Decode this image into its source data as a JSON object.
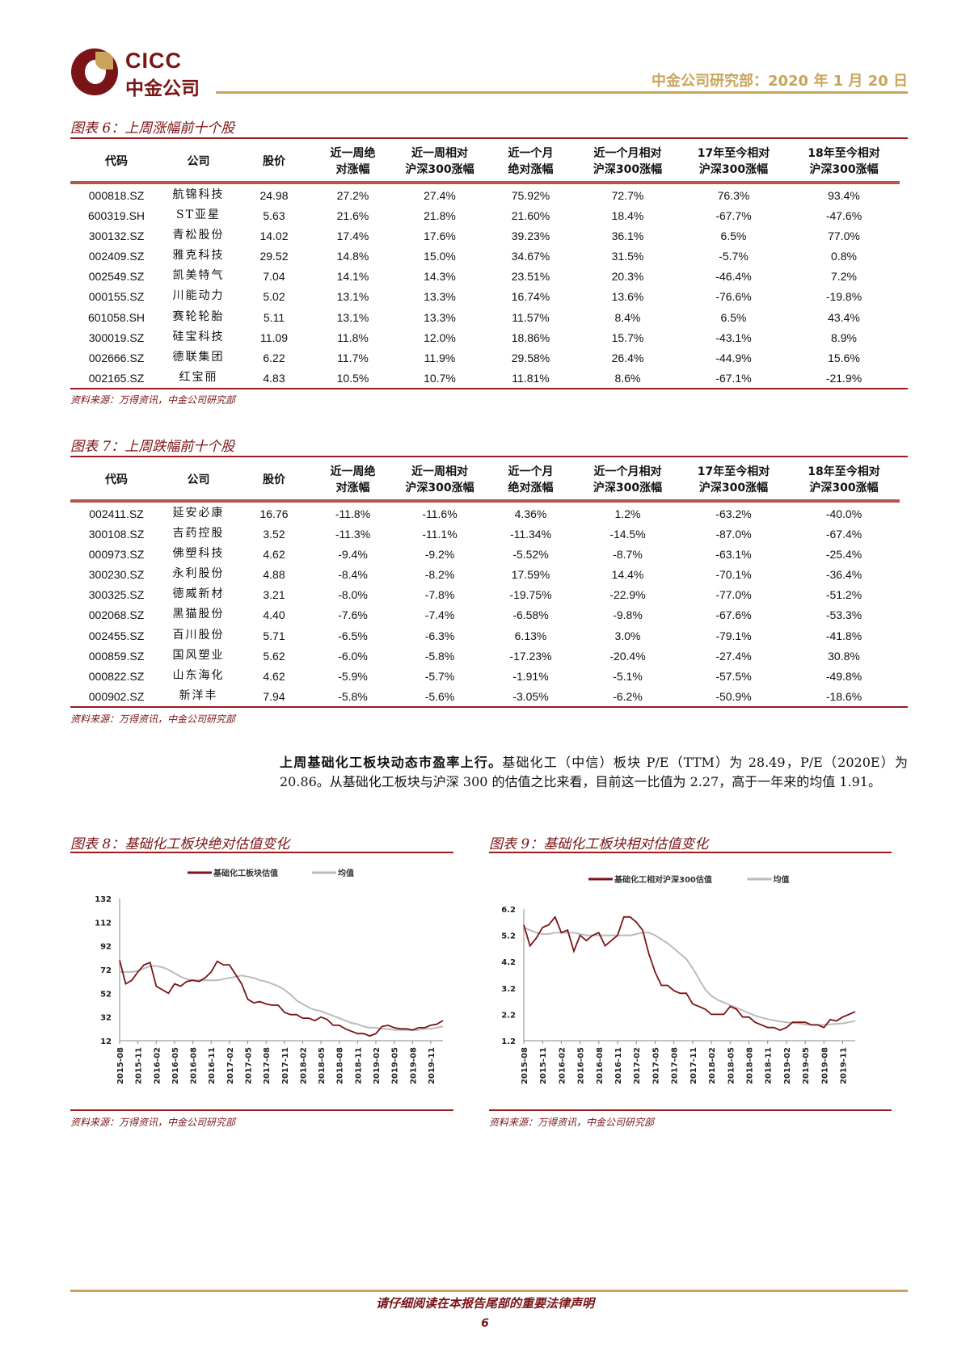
{
  "header": {
    "logo_en": "CICC",
    "logo_cn": "中金公司",
    "right_text": "中金公司研究部：2020 年 1 月 20 日"
  },
  "table1": {
    "title": "图表 6：上周涨幅前十个股",
    "headers": [
      "代码",
      "公司",
      "股价",
      "近一周绝\n对涨幅",
      "近一周相对\n沪深300涨幅",
      "近一个月\n绝对涨幅",
      "近一个月相对\n沪深300涨幅",
      "17年至今相对\n沪深300涨幅",
      "18年至今相对\n沪深300涨幅"
    ],
    "rows": [
      [
        "000818.SZ",
        "航锦科技",
        "24.98",
        "27.2%",
        "27.4%",
        "75.92%",
        "72.7%",
        "76.3%",
        "93.4%"
      ],
      [
        "600319.SH",
        "ST亚星",
        "5.63",
        "21.6%",
        "21.8%",
        "21.60%",
        "18.4%",
        "-67.7%",
        "-47.6%"
      ],
      [
        "300132.SZ",
        "青松股份",
        "14.02",
        "17.4%",
        "17.6%",
        "39.23%",
        "36.1%",
        "6.5%",
        "77.0%"
      ],
      [
        "002409.SZ",
        "雅克科技",
        "29.52",
        "14.8%",
        "15.0%",
        "34.67%",
        "31.5%",
        "-5.7%",
        "0.8%"
      ],
      [
        "002549.SZ",
        "凯美特气",
        "7.04",
        "14.1%",
        "14.3%",
        "23.51%",
        "20.3%",
        "-46.4%",
        "7.2%"
      ],
      [
        "000155.SZ",
        "川能动力",
        "5.02",
        "13.1%",
        "13.3%",
        "16.74%",
        "13.6%",
        "-76.6%",
        "-19.8%"
      ],
      [
        "601058.SH",
        "赛轮轮胎",
        "5.11",
        "13.1%",
        "13.3%",
        "11.57%",
        "8.4%",
        "6.5%",
        "43.4%"
      ],
      [
        "300019.SZ",
        "硅宝科技",
        "11.09",
        "11.8%",
        "12.0%",
        "18.86%",
        "15.7%",
        "-43.1%",
        "8.9%"
      ],
      [
        "002666.SZ",
        "德联集团",
        "6.22",
        "11.7%",
        "11.9%",
        "29.58%",
        "26.4%",
        "-44.9%",
        "15.6%"
      ],
      [
        "002165.SZ",
        "红宝丽",
        "4.83",
        "10.5%",
        "10.7%",
        "11.81%",
        "8.6%",
        "-67.1%",
        "-21.9%"
      ]
    ],
    "source": "资料来源：万得资讯，中金公司研究部"
  },
  "table2": {
    "title": "图表 7：上周跌幅前十个股",
    "headers": [
      "代码",
      "公司",
      "股价",
      "近一周绝\n对涨幅",
      "近一周相对\n沪深300涨幅",
      "近一个月\n绝对涨幅",
      "近一个月相对\n沪深300涨幅",
      "17年至今相对\n沪深300涨幅",
      "18年至今相对\n沪深300涨幅"
    ],
    "rows": [
      [
        "002411.SZ",
        "延安必康",
        "16.76",
        "-11.8%",
        "-11.6%",
        "4.36%",
        "1.2%",
        "-63.2%",
        "-40.0%"
      ],
      [
        "300108.SZ",
        "吉药控股",
        "3.52",
        "-11.3%",
        "-11.1%",
        "-11.34%",
        "-14.5%",
        "-87.0%",
        "-67.4%"
      ],
      [
        "000973.SZ",
        "佛塑科技",
        "4.62",
        "-9.4%",
        "-9.2%",
        "-5.52%",
        "-8.7%",
        "-63.1%",
        "-25.4%"
      ],
      [
        "300230.SZ",
        "永利股份",
        "4.88",
        "-8.4%",
        "-8.2%",
        "17.59%",
        "14.4%",
        "-70.1%",
        "-36.4%"
      ],
      [
        "300325.SZ",
        "德威新材",
        "3.21",
        "-8.0%",
        "-7.8%",
        "-19.75%",
        "-22.9%",
        "-77.0%",
        "-51.2%"
      ],
      [
        "002068.SZ",
        "黑猫股份",
        "4.40",
        "-7.6%",
        "-7.4%",
        "-6.58%",
        "-9.8%",
        "-67.6%",
        "-53.3%"
      ],
      [
        "002455.SZ",
        "百川股份",
        "5.71",
        "-6.5%",
        "-6.3%",
        "6.13%",
        "3.0%",
        "-79.1%",
        "-41.8%"
      ],
      [
        "000859.SZ",
        "国风塑业",
        "5.62",
        "-6.0%",
        "-5.8%",
        "-17.23%",
        "-20.4%",
        "-27.4%",
        "30.8%"
      ],
      [
        "000822.SZ",
        "山东海化",
        "4.62",
        "-5.9%",
        "-5.7%",
        "-1.91%",
        "-5.1%",
        "-57.5%",
        "-49.8%"
      ],
      [
        "000902.SZ",
        "新洋丰",
        "7.94",
        "-5.8%",
        "-5.6%",
        "-3.05%",
        "-6.2%",
        "-50.9%",
        "-18.6%"
      ]
    ],
    "source": "资料来源：万得资讯，中金公司研究部"
  },
  "paragraph": {
    "bold": "上周基础化工板块动态市盈率上行。",
    "text": "基础化工（中信）板块 P/E（TTM）为 28.49，P/E（2020E）为 20.86。从基础化工板块与沪深 300 的估值之比来看，目前这一比值为 2.27，高于一年来的均值 1.91。"
  },
  "chart_data": [
    {
      "type": "line",
      "title": "图表 8：基础化工板块绝对估值变化",
      "source": "资料来源：万得资讯，中金公司研究部",
      "ylim": [
        12,
        132
      ],
      "yticks": [
        "132",
        "112",
        "92",
        "72",
        "52",
        "32",
        "12"
      ],
      "xticks": [
        "2015-08",
        "2015-11",
        "2016-02",
        "2016-05",
        "2016-08",
        "2016-11",
        "2017-02",
        "2017-05",
        "2017-08",
        "2017-11",
        "2018-02",
        "2018-05",
        "2018-08",
        "2018-11",
        "2019-02",
        "2019-05",
        "2019-08",
        "2019-11"
      ],
      "series": [
        {
          "name": "基础化工板块估值",
          "color": "#7a1416",
          "values": [
            80,
            60,
            63,
            70,
            76,
            78,
            58,
            55,
            52,
            60,
            58,
            62,
            63,
            62,
            65,
            70,
            79,
            76,
            76,
            68,
            60,
            47,
            44,
            45,
            43,
            42,
            42,
            36,
            34,
            34,
            31,
            31,
            29,
            32,
            30,
            25,
            25,
            22,
            20,
            18,
            18,
            16,
            18,
            24,
            25,
            23,
            22,
            22,
            21,
            23,
            23,
            25,
            26,
            29
          ]
        },
        {
          "name": "均值",
          "color": "#bbbbbb",
          "values": [
            70,
            70,
            70,
            71,
            73,
            75,
            75,
            74,
            72,
            69,
            66,
            64,
            63,
            63,
            63,
            63,
            63,
            64,
            65,
            66,
            67,
            66,
            65,
            63,
            62,
            60,
            58,
            55,
            51,
            46,
            43,
            40,
            38,
            37,
            35,
            33,
            31,
            29,
            27,
            26,
            24,
            23,
            23,
            22,
            22,
            21,
            21,
            21,
            21,
            21,
            22,
            22,
            23,
            24
          ]
        }
      ]
    },
    {
      "type": "line",
      "title": "图表 9：基础化工板块相对估值变化",
      "source": "资料来源：万得资讯，中金公司研究部",
      "ylim": [
        1.2,
        6.2
      ],
      "yticks": [
        "6.2",
        "5.2",
        "4.2",
        "3.2",
        "2.2",
        "1.2"
      ],
      "xticks": [
        "2015-08",
        "2015-11",
        "2016-02",
        "2016-05",
        "2016-08",
        "2016-11",
        "2017-02",
        "2017-05",
        "2017-08",
        "2017-11",
        "2018-02",
        "2018-05",
        "2018-08",
        "2018-11",
        "2019-02",
        "2019-05",
        "2019-08",
        "2019-11"
      ],
      "series": [
        {
          "name": "基础化工相对沪深300估值",
          "color": "#7a1416",
          "values": [
            5.6,
            4.8,
            5.1,
            5.5,
            5.6,
            5.9,
            5.3,
            5.4,
            4.6,
            5.2,
            5.0,
            5.2,
            5.3,
            4.8,
            5.0,
            5.2,
            5.9,
            5.9,
            5.7,
            5.4,
            4.5,
            3.8,
            3.3,
            3.3,
            3.1,
            3.0,
            3.0,
            2.6,
            2.5,
            2.4,
            2.2,
            2.2,
            2.2,
            2.5,
            2.4,
            2.1,
            2.1,
            1.9,
            1.8,
            1.7,
            1.7,
            1.6,
            1.7,
            1.9,
            1.9,
            1.9,
            1.8,
            1.8,
            1.7,
            2.0,
            1.95,
            2.1,
            2.2,
            2.3
          ]
        },
        {
          "name": "均值",
          "color": "#bbbbbb",
          "values": [
            5.5,
            5.4,
            5.3,
            5.25,
            5.25,
            5.3,
            5.3,
            5.3,
            5.3,
            5.25,
            5.2,
            5.2,
            5.2,
            5.2,
            5.2,
            5.2,
            5.2,
            5.2,
            5.25,
            5.3,
            5.3,
            5.2,
            5.05,
            4.9,
            4.7,
            4.5,
            4.3,
            3.95,
            3.55,
            3.15,
            2.9,
            2.75,
            2.65,
            2.55,
            2.45,
            2.35,
            2.25,
            2.15,
            2.08,
            2.02,
            1.97,
            1.93,
            1.9,
            1.88,
            1.85,
            1.82,
            1.8,
            1.8,
            1.8,
            1.82,
            1.84,
            1.86,
            1.9,
            1.95
          ]
        }
      ]
    }
  ],
  "footer": {
    "notice": "请仔细阅读在本报告尾部的重要法律声明",
    "page": "6"
  }
}
